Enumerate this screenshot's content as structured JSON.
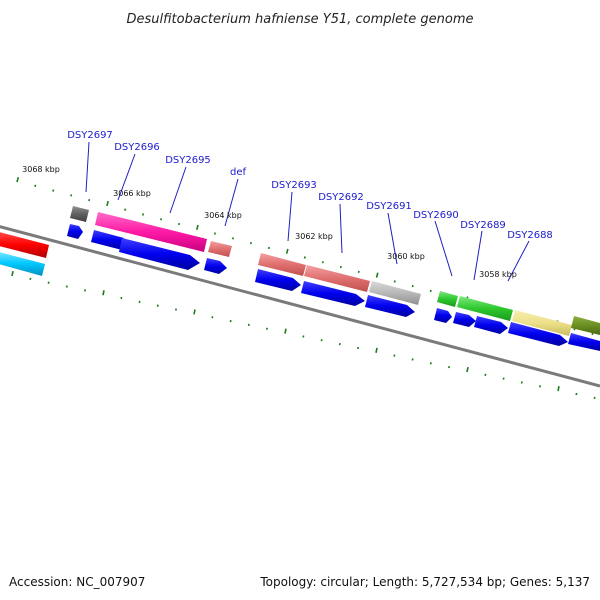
{
  "title": "Desulfitobacterium hafniense Y51, complete genome",
  "footer": {
    "accession": "Accession: NC_007907",
    "summary": "Topology: circular; Length: 5,727,534 bp; Genes: 5,137"
  },
  "gene_labels": [
    "DSY2697",
    "DSY2696",
    "DSY2695",
    "def",
    "DSY2693",
    "DSY2692",
    "DSY2691",
    "DSY2690",
    "DSY2689",
    "DSY2688"
  ],
  "kbp_labels": [
    "3068 kbp",
    "3066 kbp",
    "3064 kbp",
    "3062 kbp",
    "3060 kbp",
    "3058 kbp"
  ],
  "colors": {
    "backbone": "#808080",
    "cds_arrow": "#0000ee",
    "tick": "#1d7a1d",
    "label": "#1a1acd"
  }
}
